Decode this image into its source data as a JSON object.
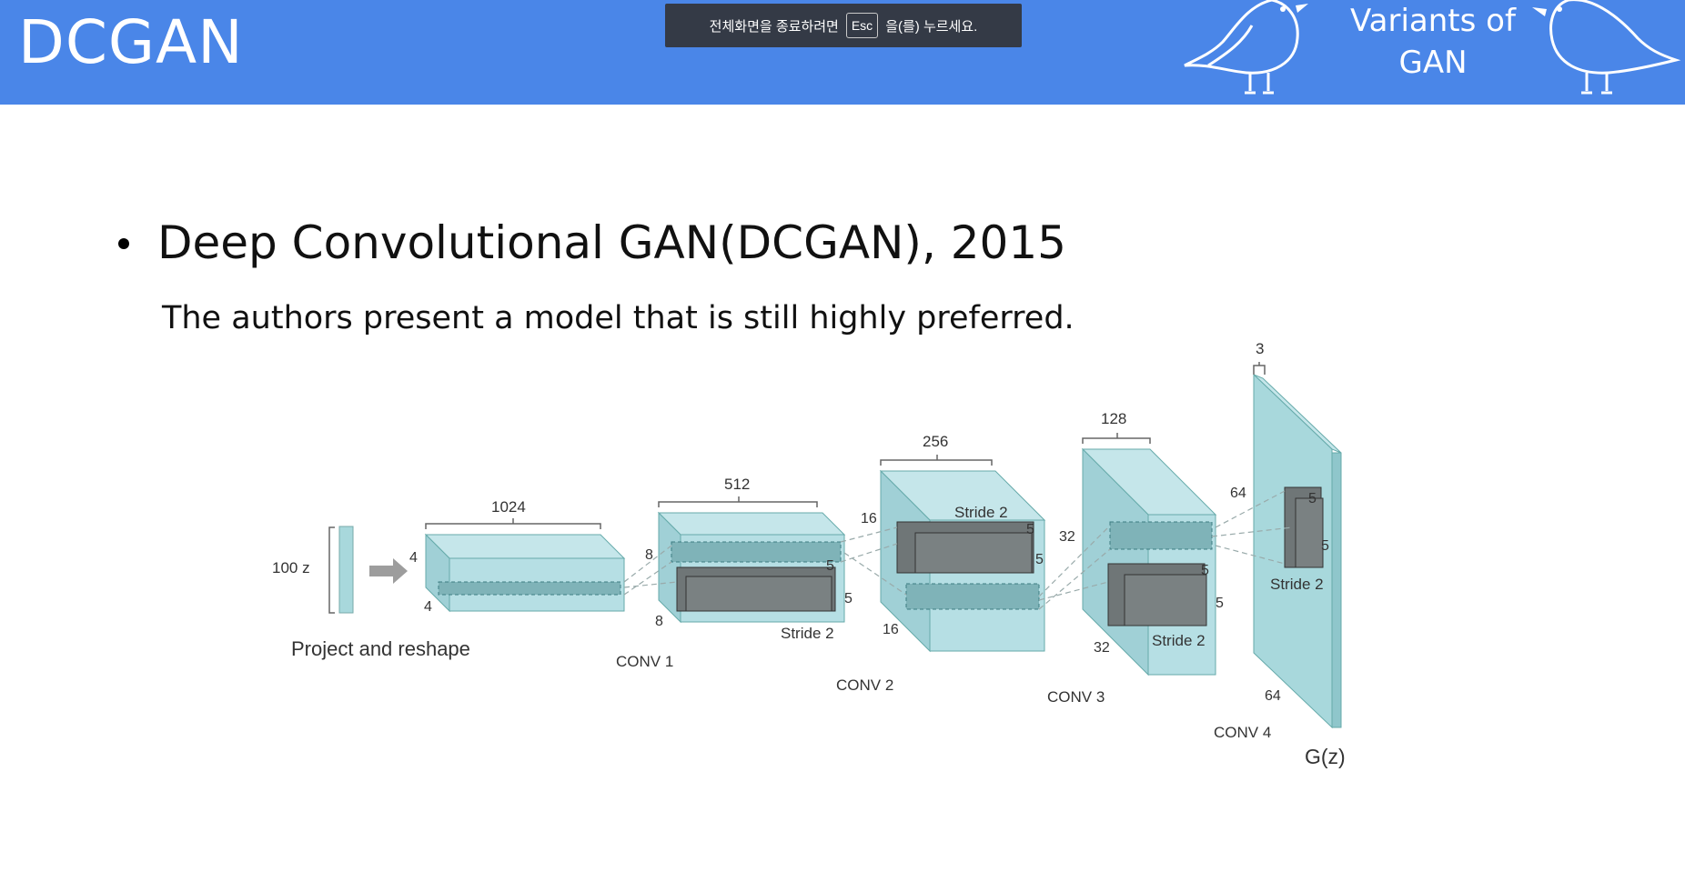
{
  "header": {
    "brand": "DCGAN",
    "badge_line1": "Variants of",
    "badge_line2": "GAN",
    "color": "#4a86e8"
  },
  "toast": {
    "before": "전체화면을 종료하려면",
    "key": "Esc",
    "after": "을(를) 누르세요."
  },
  "slide": {
    "bullet": "Deep Convolutional GAN(DCGAN), 2015",
    "subtitle": "The authors present a model that is still highly preferred."
  },
  "diagram": {
    "input_label": "100 z",
    "project_label": "Project and reshape",
    "output_label": "G(z)",
    "stride_label": "Stride 2",
    "layers": [
      {
        "name": "CONV 1",
        "depth": "1024",
        "size": "4"
      },
      {
        "name": "CONV 2",
        "depth": "512",
        "size": "8"
      },
      {
        "name": "CONV 3",
        "depth": "256",
        "size": "16"
      },
      {
        "name": "CONV 4",
        "depth": "128",
        "size": "32"
      },
      {
        "name": "",
        "depth": "3",
        "size": "64"
      }
    ],
    "kernel": "5"
  }
}
